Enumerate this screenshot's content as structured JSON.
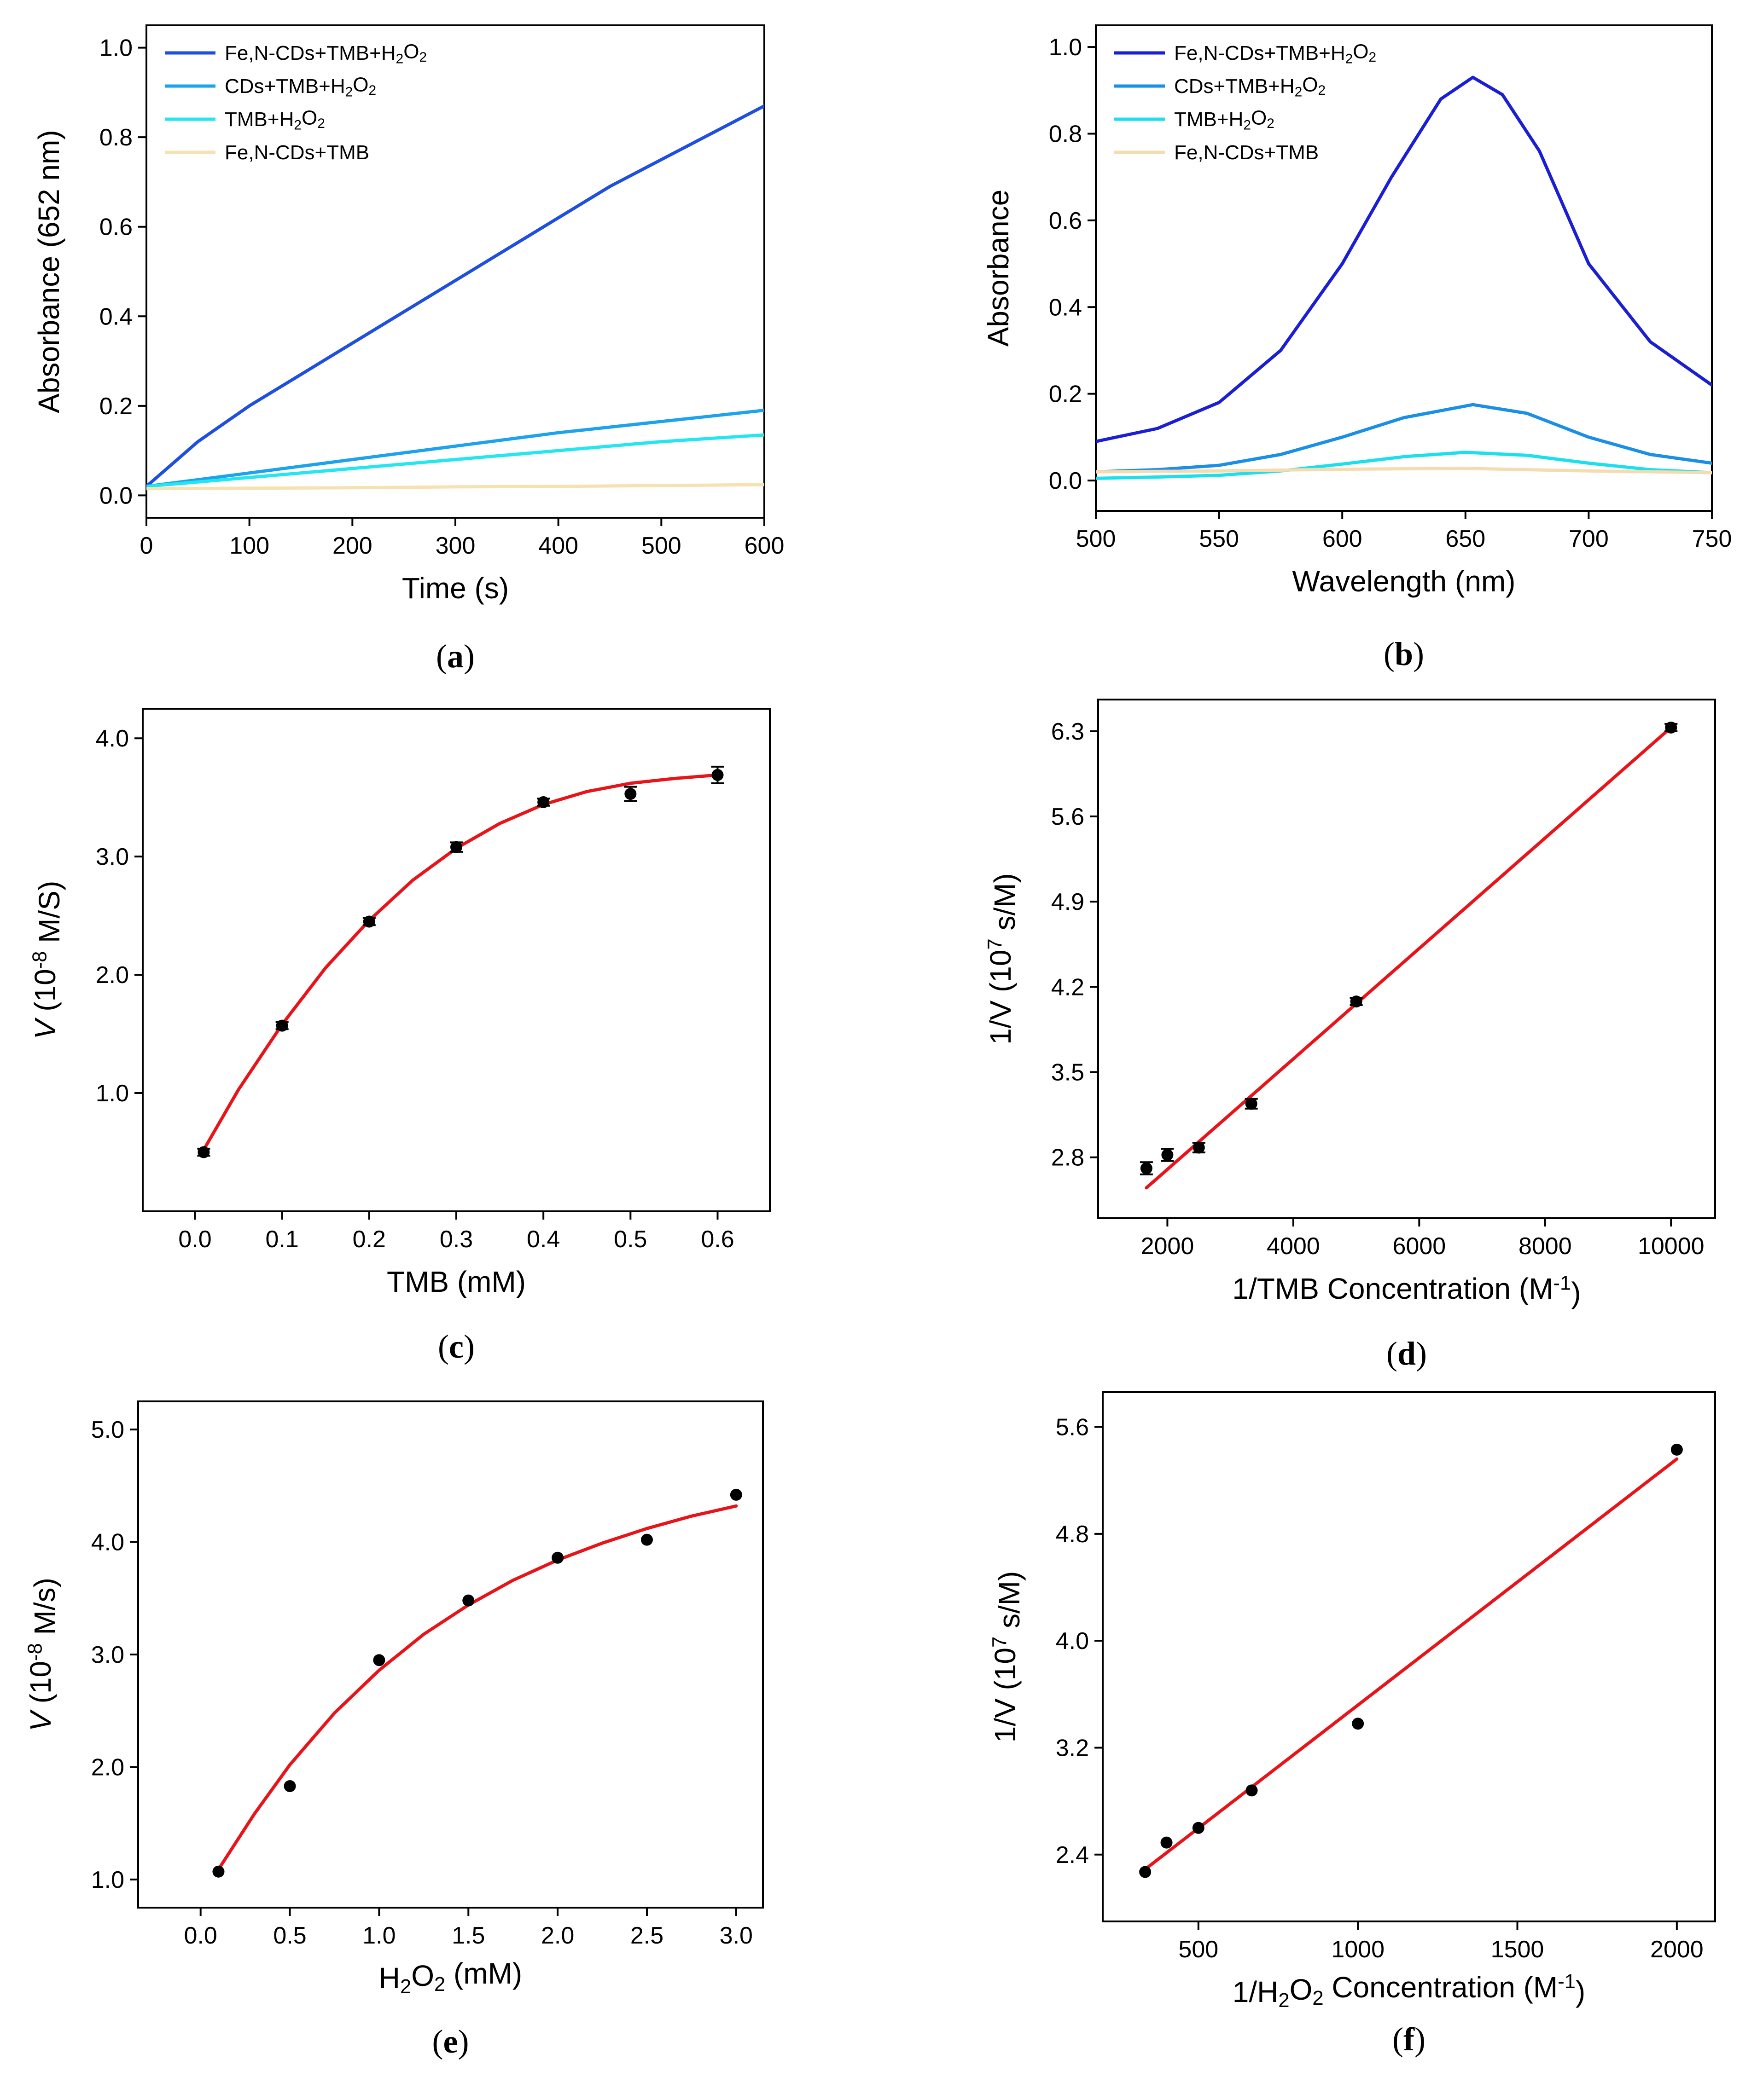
{
  "figure": {
    "panels": [
      {
        "id": "a",
        "label": "(a)",
        "chart_data": {
          "type": "line",
          "title": "",
          "xlabel": "Time (s)",
          "ylabel": "Absorbance (652 nm)",
          "xlim": [
            0,
            600
          ],
          "ylim": [
            -0.05,
            1.05
          ],
          "xticks": [
            0,
            100,
            200,
            300,
            400,
            500,
            600
          ],
          "yticks": [
            0.0,
            0.2,
            0.4,
            0.6,
            0.8,
            1.0
          ],
          "xtick_labels": [
            "0",
            "100",
            "200",
            "300",
            "400",
            "500",
            "600"
          ],
          "ytick_labels": [
            "0.0",
            "0.2",
            "0.4",
            "0.6",
            "0.8",
            "1.0"
          ],
          "legend_position": "top-left",
          "series": [
            {
              "name": "Fe,N-CDs+TMB+H2O2",
              "color": "#1f4fe0",
              "x": [
                0,
                50,
                100,
                150,
                200,
                250,
                300,
                350,
                400,
                450,
                500,
                550,
                600
              ],
              "y": [
                0.02,
                0.12,
                0.2,
                0.27,
                0.34,
                0.41,
                0.48,
                0.55,
                0.62,
                0.69,
                0.75,
                0.81,
                0.87
              ]
            },
            {
              "name": "CDs+TMB+H2O2",
              "color": "#1ca3ee",
              "x": [
                0,
                100,
                200,
                300,
                400,
                500,
                600
              ],
              "y": [
                0.02,
                0.05,
                0.08,
                0.11,
                0.14,
                0.165,
                0.19
              ]
            },
            {
              "name": "TMB+H2O2",
              "color": "#22e6f0",
              "x": [
                0,
                100,
                200,
                300,
                400,
                500,
                600
              ],
              "y": [
                0.02,
                0.04,
                0.06,
                0.08,
                0.1,
                0.12,
                0.135
              ]
            },
            {
              "name": "Fe,N-CDs+TMB",
              "color": "#f5e2b0",
              "x": [
                0,
                100,
                200,
                300,
                400,
                500,
                600
              ],
              "y": [
                0.015,
                0.016,
                0.017,
                0.019,
                0.02,
                0.022,
                0.024
              ]
            }
          ]
        }
      },
      {
        "id": "b",
        "label": "(b)",
        "chart_data": {
          "type": "line",
          "title": "",
          "xlabel": "Wavelength (nm)",
          "ylabel": "Absorbance",
          "xlim": [
            500,
            750
          ],
          "ylim": [
            -0.07,
            1.05
          ],
          "xticks": [
            500,
            550,
            600,
            650,
            700,
            750
          ],
          "yticks": [
            0.0,
            0.2,
            0.4,
            0.6,
            0.8,
            1.0
          ],
          "xtick_labels": [
            "500",
            "550",
            "600",
            "650",
            "700",
            "750"
          ],
          "ytick_labels": [
            "0.0",
            "0.2",
            "0.4",
            "0.6",
            "0.8",
            "1.0"
          ],
          "legend_position": "top-left",
          "series": [
            {
              "name": "Fe,N-CDs+TMB+H2O2",
              "color": "#1a1fd6",
              "x": [
                500,
                525,
                550,
                575,
                600,
                620,
                640,
                653,
                665,
                680,
                700,
                725,
                750
              ],
              "y": [
                0.09,
                0.12,
                0.18,
                0.3,
                0.5,
                0.7,
                0.88,
                0.93,
                0.89,
                0.76,
                0.5,
                0.32,
                0.22
              ]
            },
            {
              "name": "CDs+TMB+H2O2",
              "color": "#1a8fe8",
              "x": [
                500,
                525,
                550,
                575,
                600,
                625,
                653,
                675,
                700,
                725,
                750
              ],
              "y": [
                0.02,
                0.025,
                0.035,
                0.06,
                0.1,
                0.145,
                0.175,
                0.155,
                0.1,
                0.06,
                0.04
              ]
            },
            {
              "name": "TMB+H2O2",
              "color": "#1ae0ee",
              "x": [
                500,
                525,
                550,
                575,
                600,
                625,
                650,
                675,
                700,
                725,
                750
              ],
              "y": [
                0.005,
                0.008,
                0.012,
                0.022,
                0.038,
                0.055,
                0.065,
                0.058,
                0.04,
                0.025,
                0.018
              ]
            },
            {
              "name": "Fe,N-CDs+TMB",
              "color": "#f5dcb0",
              "x": [
                500,
                550,
                600,
                650,
                700,
                750
              ],
              "y": [
                0.02,
                0.022,
                0.026,
                0.028,
                0.022,
                0.018
              ]
            }
          ]
        }
      },
      {
        "id": "c",
        "label": "(c)",
        "chart_data": {
          "type": "scatter",
          "title": "",
          "xlabel": "TMB (mM)",
          "ylabel": "V (10-8 M/S)",
          "xlim": [
            -0.06,
            0.66
          ],
          "ylim": [
            0.0,
            4.25
          ],
          "xticks": [
            0.0,
            0.1,
            0.2,
            0.3,
            0.4,
            0.5,
            0.6
          ],
          "yticks": [
            1.0,
            2.0,
            3.0,
            4.0
          ],
          "xtick_labels": [
            "0.0",
            "0.1",
            "0.2",
            "0.3",
            "0.4",
            "0.5",
            "0.6"
          ],
          "ytick_labels": [
            "1.0",
            "2.0",
            "3.0",
            "4.0"
          ],
          "points": {
            "x": [
              0.01,
              0.1,
              0.2,
              0.3,
              0.4,
              0.5,
              0.6
            ],
            "y": [
              0.5,
              1.57,
              2.45,
              3.08,
              3.46,
              3.53,
              3.69
            ],
            "err": [
              0.03,
              0.03,
              0.03,
              0.04,
              0.03,
              0.06,
              0.07
            ]
          },
          "fit": {
            "x": [
              0.01,
              0.05,
              0.1,
              0.15,
              0.2,
              0.25,
              0.3,
              0.35,
              0.4,
              0.45,
              0.5,
              0.55,
              0.6
            ],
            "y": [
              0.52,
              1.03,
              1.58,
              2.06,
              2.46,
              2.8,
              3.07,
              3.28,
              3.44,
              3.55,
              3.62,
              3.66,
              3.69
            ],
            "color": "#e8141a"
          }
        }
      },
      {
        "id": "d",
        "label": "(d)",
        "chart_data": {
          "type": "scatter",
          "title": "",
          "xlabel": "1/TMB Concentration (M-1)",
          "ylabel": "1/V (107 s/M)",
          "xlim": [
            900,
            10700
          ],
          "ylim": [
            2.3,
            6.56
          ],
          "xticks": [
            2000,
            4000,
            6000,
            8000,
            10000
          ],
          "yticks": [
            2.8,
            3.5,
            4.2,
            4.9,
            5.6,
            6.3
          ],
          "xtick_labels": [
            "2000",
            "4000",
            "6000",
            "8000",
            "10000"
          ],
          "ytick_labels": [
            "2.8",
            "3.5",
            "4.2",
            "4.9",
            "5.6",
            "6.3"
          ],
          "points": {
            "x": [
              1667,
              2000,
              2500,
              3333,
              5000,
              10000
            ],
            "y": [
              2.71,
              2.82,
              2.88,
              3.24,
              4.08,
              6.33
            ],
            "err": [
              0.05,
              0.05,
              0.04,
              0.04,
              0.03,
              0.03
            ]
          },
          "fit": {
            "x": [
              1667,
              10000
            ],
            "y": [
              2.55,
              6.33
            ],
            "color": "#e8141a"
          }
        }
      },
      {
        "id": "e",
        "label": "(e)",
        "chart_data": {
          "type": "scatter",
          "title": "",
          "xlabel": "H2O2 (mM)",
          "ylabel": "V (10-8 M/s)",
          "xlim": [
            -0.35,
            3.15
          ],
          "ylim": [
            0.75,
            5.25
          ],
          "xticks": [
            0.0,
            0.5,
            1.0,
            1.5,
            2.0,
            2.5,
            3.0
          ],
          "yticks": [
            1.0,
            2.0,
            3.0,
            4.0,
            5.0
          ],
          "xtick_labels": [
            "0.0",
            "0.5",
            "1.0",
            "1.5",
            "2.0",
            "2.5",
            "3.0"
          ],
          "ytick_labels": [
            "1.0",
            "2.0",
            "3.0",
            "4.0",
            "5.0"
          ],
          "points": {
            "x": [
              0.1,
              0.5,
              1.0,
              1.5,
              2.0,
              2.5,
              3.0
            ],
            "y": [
              1.07,
              1.83,
              2.95,
              3.48,
              3.86,
              4.02,
              4.42
            ]
          },
          "fit": {
            "x": [
              0.1,
              0.3,
              0.5,
              0.75,
              1.0,
              1.25,
              1.5,
              1.75,
              2.0,
              2.25,
              2.5,
              2.75,
              3.0
            ],
            "y": [
              1.09,
              1.58,
              2.02,
              2.48,
              2.86,
              3.18,
              3.44,
              3.66,
              3.84,
              3.99,
              4.12,
              4.23,
              4.32
            ],
            "color": "#e8141a"
          }
        }
      },
      {
        "id": "f",
        "label": "(f)",
        "chart_data": {
          "type": "scatter",
          "title": "",
          "xlabel": "1/H2O2 Concentration (M-1)",
          "ylabel": "1/V (107 s/M)",
          "xlim": [
            200,
            2120
          ],
          "ylim": [
            1.9,
            5.86
          ],
          "xticks": [
            500,
            1000,
            1500,
            2000
          ],
          "yticks": [
            2.4,
            3.2,
            4.0,
            4.8,
            5.6
          ],
          "xtick_labels": [
            "500",
            "1000",
            "1500",
            "2000"
          ],
          "ytick_labels": [
            "2.4",
            "3.2",
            "4.0",
            "4.8",
            "5.6"
          ],
          "points": {
            "x": [
              333,
              400,
              500,
              667,
              1000,
              2000
            ],
            "y": [
              2.27,
              2.49,
              2.6,
              2.88,
              3.38,
              5.43
            ]
          },
          "fit": {
            "x": [
              333,
              2000
            ],
            "y": [
              2.29,
              5.36
            ],
            "color": "#e8141a"
          }
        }
      }
    ]
  }
}
